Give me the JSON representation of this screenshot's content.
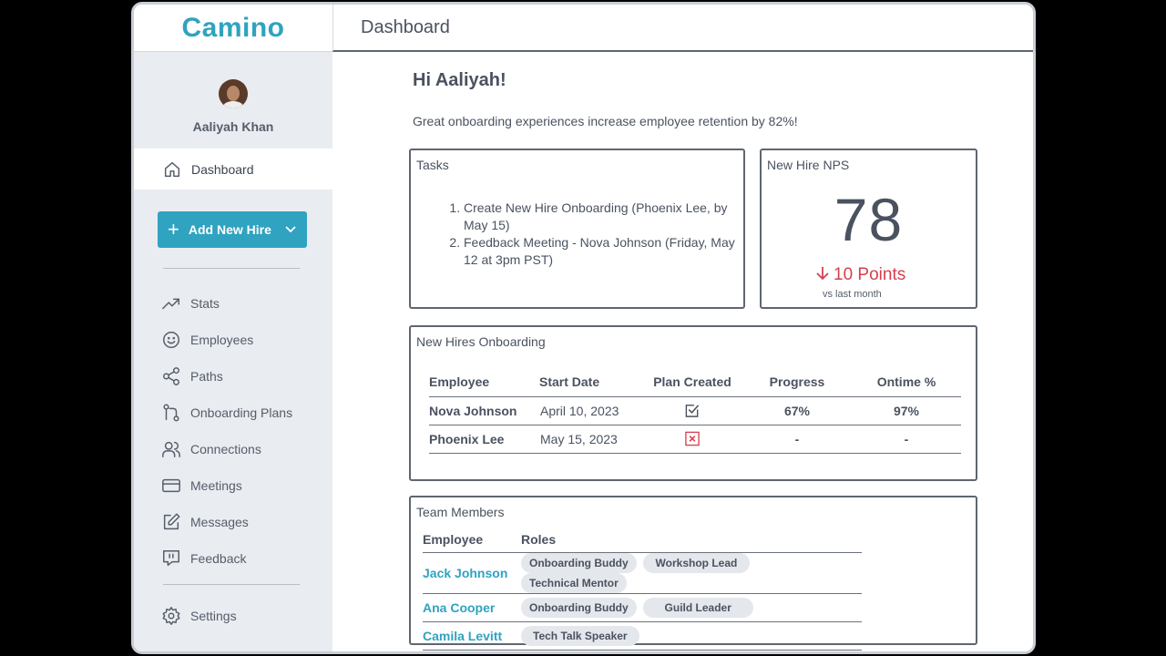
{
  "app": {
    "logo": "Camino",
    "page_title": "Dashboard"
  },
  "profile": {
    "name": "Aaliyah Khan"
  },
  "sidebar": {
    "active": {
      "label": "Dashboard",
      "icon": "home-icon"
    },
    "add_button": "Add New Hire",
    "items": [
      {
        "label": "Stats",
        "icon": "trending-icon"
      },
      {
        "label": "Employees",
        "icon": "smiley-icon"
      },
      {
        "label": "Paths",
        "icon": "share-icon"
      },
      {
        "label": "Onboarding Plans",
        "icon": "git-branch-icon"
      },
      {
        "label": "Connections",
        "icon": "users-icon"
      },
      {
        "label": "Meetings",
        "icon": "card-icon"
      },
      {
        "label": "Messages",
        "icon": "edit-icon"
      },
      {
        "label": "Feedback",
        "icon": "message-icon"
      }
    ],
    "settings": {
      "label": "Settings",
      "icon": "gear-icon"
    }
  },
  "main": {
    "greeting": "Hi Aaliyah!",
    "tagline": "Great onboarding experiences increase employee retention by 82%!",
    "tasks": {
      "title": "Tasks",
      "items": [
        "Create New Hire Onboarding (Phoenix Lee, by May 15)",
        "Feedback Meeting - Nova Johnson (Friday, May 12 at 3pm PST)"
      ]
    },
    "nps": {
      "title": "New Hire NPS",
      "value": "78",
      "change": "10 Points",
      "sub": "vs last month",
      "change_color": "#d63f4e"
    },
    "new_hires": {
      "title": "New Hires Onboarding",
      "headers": [
        "Employee",
        "Start Date",
        "Plan Created",
        "Progress",
        "Ontime %"
      ],
      "rows": [
        {
          "employee": "Nova Johnson",
          "start": "April 10, 2023",
          "plan_created": true,
          "progress": "67%",
          "ontime": "97%"
        },
        {
          "employee": "Phoenix Lee",
          "start": "May 15, 2023",
          "plan_created": false,
          "progress": "-",
          "ontime": "-"
        }
      ]
    },
    "team": {
      "title": "Team Members",
      "headers": [
        "Employee",
        "Roles"
      ],
      "rows": [
        {
          "employee": "Jack Johnson",
          "roles": [
            "Onboarding Buddy",
            "Workshop Lead",
            "Technical Mentor"
          ]
        },
        {
          "employee": "Ana Cooper",
          "roles": [
            "Onboarding Buddy",
            "Guild Leader"
          ]
        },
        {
          "employee": "Camila Levitt",
          "roles": [
            "Tech Talk Speaker"
          ]
        }
      ]
    }
  },
  "colors": {
    "accent": "#2fa3c0",
    "negative": "#d63f4e",
    "sidebar_bg": "#e9ecf0"
  }
}
